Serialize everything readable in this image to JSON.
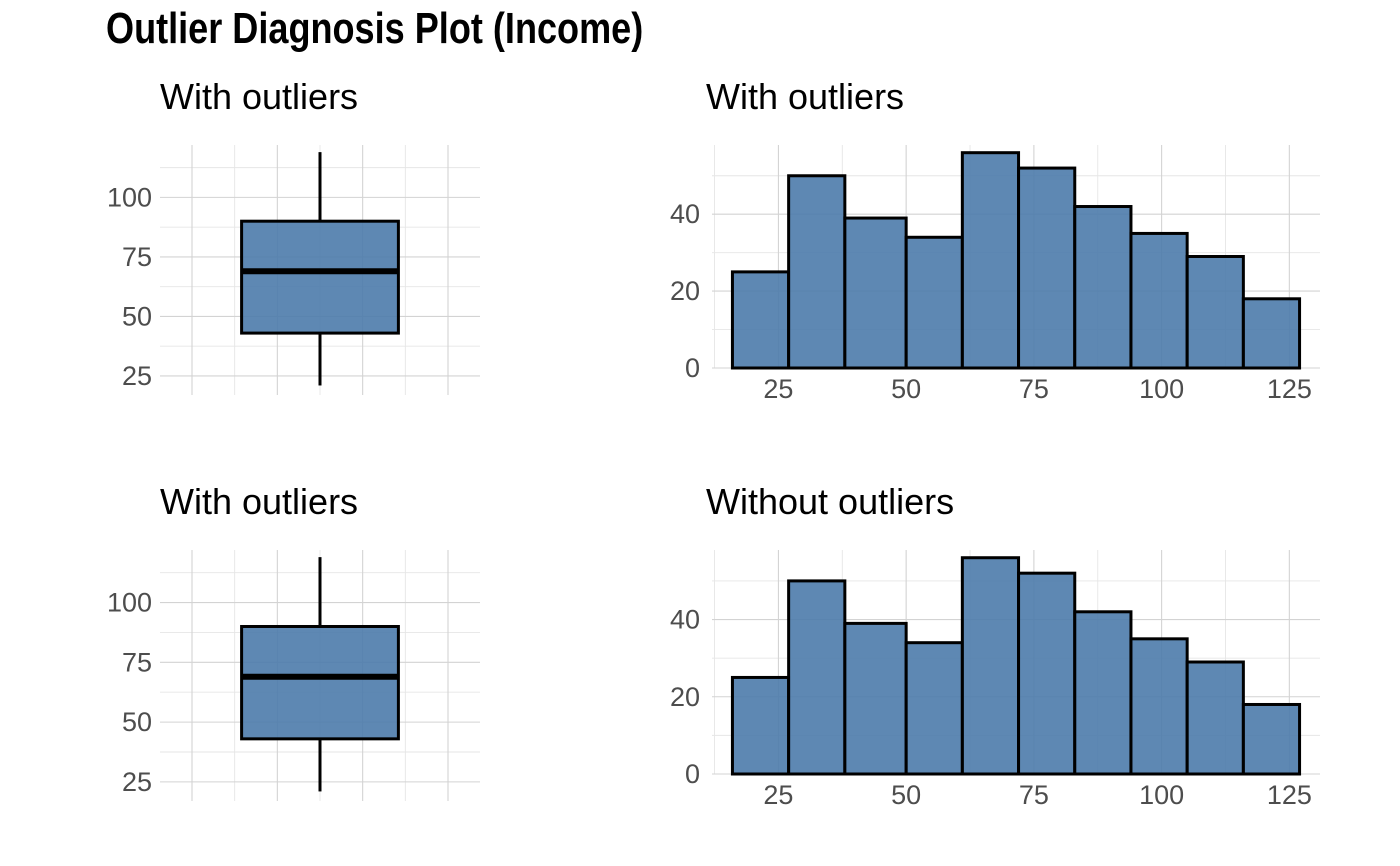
{
  "title": "Outlier Diagnosis Plot (Income)",
  "colors": {
    "fill": "#4c7bab",
    "outline": "#000000",
    "grid": "#d3d3d3",
    "tick_text": "#4d4d4d"
  },
  "chart_data": [
    {
      "type": "box",
      "title": "With outliers",
      "xlabel": "",
      "ylabel": "",
      "y_ticks": [
        25,
        50,
        75,
        100
      ],
      "ylim": [
        17,
        122
      ],
      "grid": true,
      "stats": {
        "min": 21,
        "q1": 43,
        "median": 69,
        "q3": 90,
        "max": 119
      }
    },
    {
      "type": "bar",
      "subtype": "histogram",
      "title": "With outliers",
      "xlabel": "",
      "ylabel": "",
      "x_ticks": [
        25,
        50,
        75,
        100,
        125
      ],
      "y_ticks": [
        0,
        20,
        40
      ],
      "xlim": [
        12,
        131
      ],
      "ylim": [
        0,
        58
      ],
      "grid": true,
      "bins": [
        {
          "x0": 16,
          "x1": 27,
          "count": 25
        },
        {
          "x0": 27,
          "x1": 38,
          "count": 50
        },
        {
          "x0": 38,
          "x1": 50,
          "count": 39
        },
        {
          "x0": 50,
          "x1": 61,
          "count": 34
        },
        {
          "x0": 61,
          "x1": 72,
          "count": 56
        },
        {
          "x0": 72,
          "x1": 83,
          "count": 52
        },
        {
          "x0": 83,
          "x1": 94,
          "count": 42
        },
        {
          "x0": 94,
          "x1": 105,
          "count": 35
        },
        {
          "x0": 105,
          "x1": 116,
          "count": 29
        },
        {
          "x0": 116,
          "x1": 127,
          "count": 18
        }
      ]
    },
    {
      "type": "box",
      "title": "With outliers",
      "xlabel": "",
      "ylabel": "",
      "y_ticks": [
        25,
        50,
        75,
        100
      ],
      "ylim": [
        17,
        122
      ],
      "grid": true,
      "stats": {
        "min": 21,
        "q1": 43,
        "median": 69,
        "q3": 90,
        "max": 119
      }
    },
    {
      "type": "bar",
      "subtype": "histogram",
      "title": "Without outliers",
      "xlabel": "",
      "ylabel": "",
      "x_ticks": [
        25,
        50,
        75,
        100,
        125
      ],
      "y_ticks": [
        0,
        20,
        40
      ],
      "xlim": [
        12,
        131
      ],
      "ylim": [
        0,
        58
      ],
      "grid": true,
      "bins": [
        {
          "x0": 16,
          "x1": 27,
          "count": 25
        },
        {
          "x0": 27,
          "x1": 38,
          "count": 50
        },
        {
          "x0": 38,
          "x1": 50,
          "count": 39
        },
        {
          "x0": 50,
          "x1": 61,
          "count": 34
        },
        {
          "x0": 61,
          "x1": 72,
          "count": 56
        },
        {
          "x0": 72,
          "x1": 83,
          "count": 52
        },
        {
          "x0": 83,
          "x1": 94,
          "count": 42
        },
        {
          "x0": 94,
          "x1": 105,
          "count": 35
        },
        {
          "x0": 105,
          "x1": 116,
          "count": 29
        },
        {
          "x0": 116,
          "x1": 127,
          "count": 18
        }
      ]
    }
  ]
}
